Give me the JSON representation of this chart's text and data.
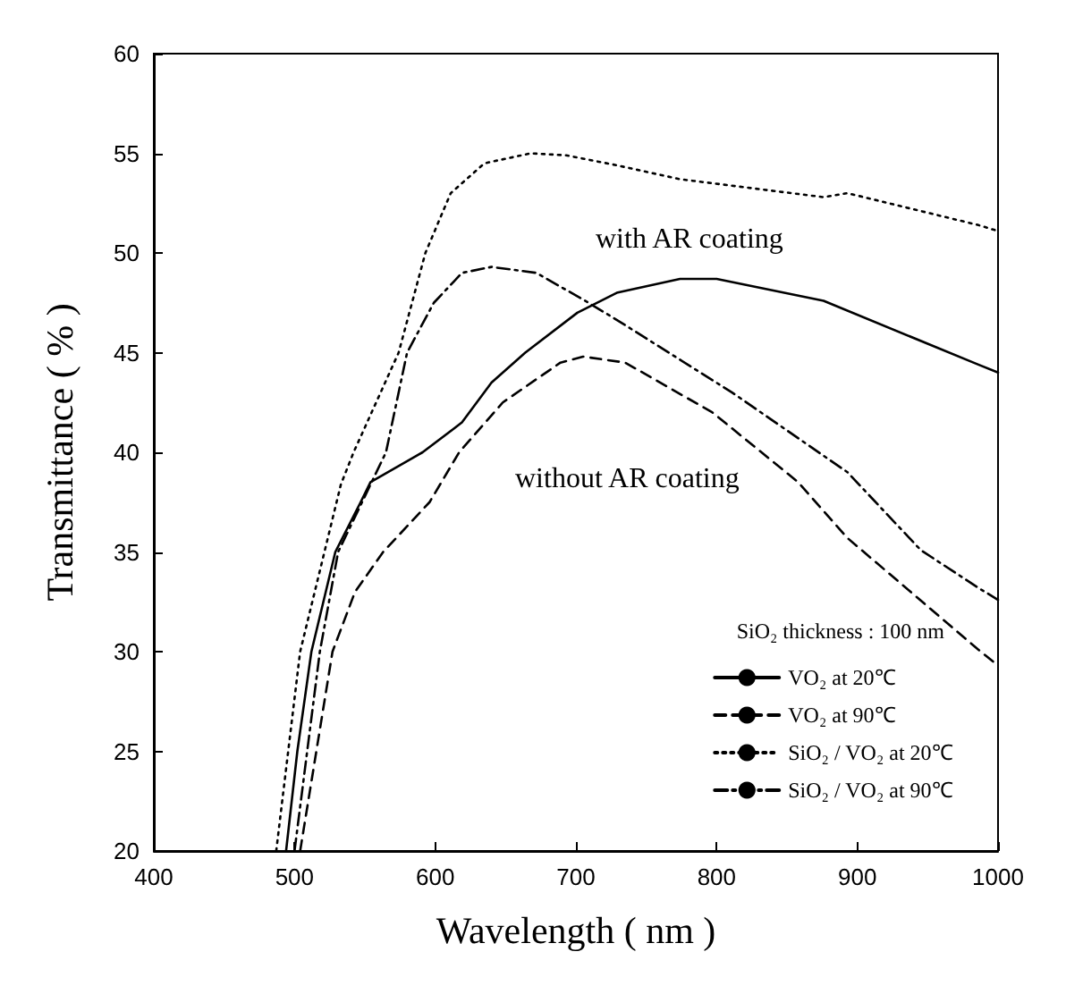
{
  "chart_data": {
    "type": "line",
    "xlabel": "Wavelength ( nm )",
    "ylabel": "Transmittance ( % )",
    "legend_title": "SiO₂ thickness : 100 nm",
    "legend": "bottom right",
    "grid": false,
    "marker": "none",
    "xlim": [
      400,
      1000
    ],
    "xticks": [
      400,
      500,
      600,
      700,
      800,
      900,
      1000
    ],
    "ylim": [
      20,
      60
    ],
    "yticks": [
      20,
      25,
      30,
      35,
      40,
      45,
      50,
      55,
      60
    ],
    "series": [
      {
        "name": "VO₂ at 20℃",
        "color": "#000000",
        "line_style": "solid",
        "x": [
          494,
          502,
          512,
          529,
          547,
          554,
          591,
          619,
          640,
          664,
          701,
          729,
          774,
          800,
          876,
          986,
          1000
        ],
        "values": [
          20,
          25,
          30,
          35,
          37.5,
          38.5,
          40,
          41.5,
          43.5,
          45,
          47,
          48,
          48.7,
          48.7,
          47.6,
          44.4,
          44
        ]
      },
      {
        "name": "VO₂ at 90℃",
        "color": "#000000",
        "line_style": "dashed",
        "x": [
          504,
          527,
          543,
          563,
          596,
          617,
          648,
          689,
          705,
          735,
          797,
          858,
          893,
          986,
          1000
        ],
        "values": [
          20,
          30,
          33,
          35,
          37.5,
          40,
          42.5,
          44.5,
          44.8,
          44.5,
          42,
          38.5,
          35.7,
          30.1,
          29.3
        ]
      },
      {
        "name": "SiO₂ / VO₂ at 20℃",
        "color": "#000000",
        "line_style": "dotted",
        "x": [
          487,
          504,
          533,
          542,
          574,
          593,
          611,
          635,
          668,
          693,
          729,
          774,
          876,
          893,
          986,
          1000
        ],
        "values": [
          20,
          30,
          38.4,
          40,
          45,
          50,
          53,
          54.5,
          55,
          54.9,
          54.4,
          53.7,
          52.8,
          53,
          51.4,
          51.1
        ]
      },
      {
        "name": "SiO₂ / VO₂ at 90℃",
        "color": "#000000",
        "line_style": "dashdot",
        "x": [
          500,
          518,
          531,
          565,
          580,
          599,
          619,
          640,
          672,
          709,
          730,
          811,
          893,
          945,
          986,
          1000
        ],
        "values": [
          20,
          30,
          35,
          40,
          45,
          47.5,
          49,
          49.3,
          49,
          47.5,
          46.6,
          43,
          39,
          35.1,
          33.2,
          32.6
        ]
      }
    ],
    "annotations": [
      "with AR coating",
      "without AR coating"
    ]
  }
}
